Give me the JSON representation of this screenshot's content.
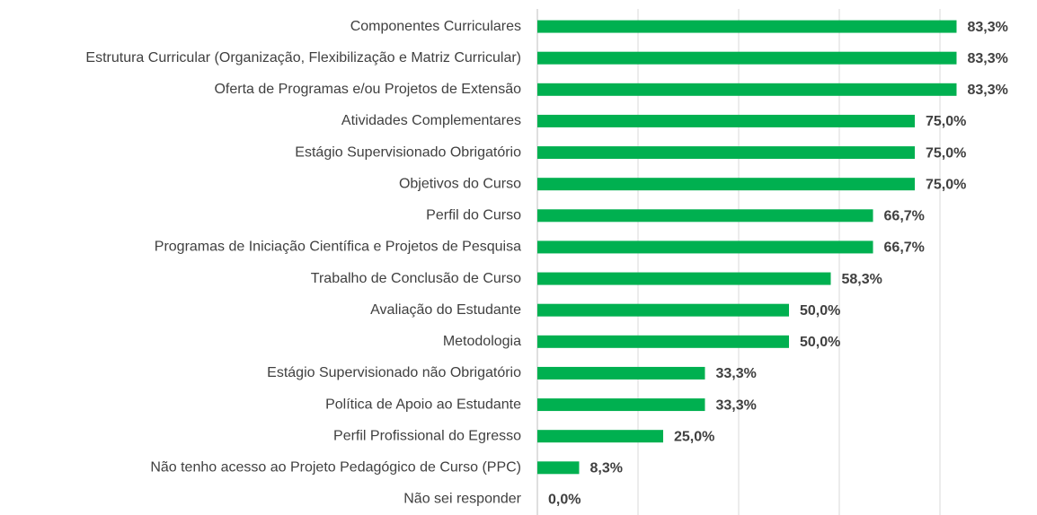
{
  "chart_data": {
    "type": "bar",
    "orientation": "horizontal",
    "categories": [
      "Componentes Curriculares",
      "Estrutura Curricular (Organização, Flexibilização e Matriz Curricular)",
      "Oferta de Programas e/ou Projetos de Extensão",
      "Atividades Complementares",
      "Estágio Supervisionado Obrigatório",
      "Objetivos do Curso",
      "Perfil do Curso",
      "Programas de Iniciação Científica e Projetos de Pesquisa",
      "Trabalho de Conclusão de Curso",
      "Avaliação do Estudante",
      "Metodologia",
      "Estágio Supervisionado não Obrigatório",
      "Política de Apoio ao Estudante",
      "Perfil Profissional do Egresso",
      "Não tenho acesso ao Projeto Pedagógico de Curso (PPC)",
      "Não sei responder"
    ],
    "values": [
      83.3,
      83.3,
      83.3,
      75.0,
      75.0,
      75.0,
      66.7,
      66.7,
      58.3,
      50.0,
      50.0,
      33.3,
      33.3,
      25.0,
      8.3,
      0.0
    ],
    "value_labels": [
      "83,3%",
      "83,3%",
      "83,3%",
      "75,0%",
      "75,0%",
      "75,0%",
      "66,7%",
      "66,7%",
      "58,3%",
      "50,0%",
      "50,0%",
      "33,3%",
      "33,3%",
      "25,0%",
      "8,3%",
      "0,0%"
    ],
    "color": "#00b050",
    "xlim": [
      0,
      100
    ],
    "xticks": [
      0,
      20,
      40,
      60,
      80
    ],
    "grid": true
  }
}
